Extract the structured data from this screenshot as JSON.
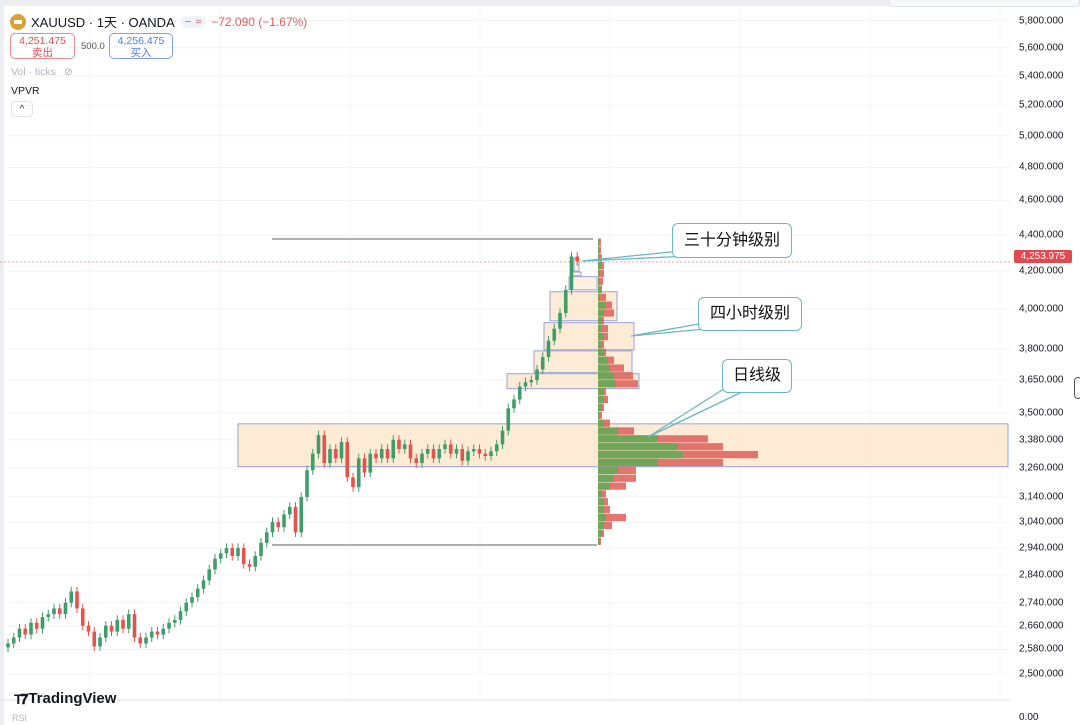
{
  "header": {
    "symbol": "XAUUSD · 1天 · OANDA",
    "change": "−72.090 (−1.67%)",
    "pill_left": "−",
    "pill_right": "≈",
    "sell_price": "4,251.475",
    "sell_label": "卖出",
    "spread": "500.0",
    "buy_price": "4,256.475",
    "buy_label": "买入",
    "vol_indicator": "Vol · ticks",
    "vpvr_indicator": "VPVR",
    "collapse_icon": "chevron-up-icon",
    "collapse_glyph": "^"
  },
  "colors": {
    "up": "#3f9d6a",
    "down": "#e5534b",
    "profile_up": "#6aa857",
    "profile_down": "#e0675f",
    "zone_fill": "#fde8cf",
    "zone_border": "#98a3d6",
    "callout_border": "#6bb7c2",
    "current_price": "#e2484e"
  },
  "price_axis": {
    "ticks": [
      "5,800.000",
      "5,600.000",
      "5,400.000",
      "5,200.000",
      "5,000.000",
      "4,800.000",
      "4,600.000",
      "4,400.000",
      "4,200.000",
      "4,000.000",
      "3,800.000",
      "3,650.000",
      "3,500.000",
      "3,380.000",
      "3,260.000",
      "3,140.000",
      "3,040.000",
      "2,940.000",
      "2,840.000",
      "2,740.000",
      "2,660.000",
      "2,580.000",
      "2,500.000"
    ],
    "current_price": "4,253.975",
    "rsi_zero": "0.00",
    "scale": "log"
  },
  "chart_data": {
    "type": "candlestick",
    "symbol": "XAUUSD",
    "interval": "1D",
    "closes": [
      2600,
      2620,
      2650,
      2630,
      2670,
      2650,
      2690,
      2700,
      2720,
      2700,
      2740,
      2780,
      2720,
      2660,
      2640,
      2590,
      2620,
      2660,
      2640,
      2680,
      2650,
      2700,
      2620,
      2600,
      2620,
      2640,
      2630,
      2650,
      2670,
      2680,
      2710,
      2740,
      2760,
      2790,
      2820,
      2860,
      2900,
      2920,
      2940,
      2910,
      2940,
      2880,
      2870,
      2910,
      2960,
      3000,
      3040,
      3020,
      3070,
      3100,
      3000,
      3140,
      3250,
      3320,
      3400,
      3280,
      3340,
      3300,
      3370,
      3220,
      3180,
      3300,
      3240,
      3320,
      3300,
      3340,
      3300,
      3380,
      3340,
      3360,
      3300,
      3280,
      3320,
      3340,
      3300,
      3340,
      3360,
      3320,
      3340,
      3290,
      3330,
      3340,
      3320,
      3310,
      3330,
      3360,
      3420,
      3520,
      3560,
      3620,
      3640,
      3650,
      3700,
      3760,
      3840,
      3900,
      3980,
      4100,
      4280,
      4253.975
    ],
    "range_high": 4380,
    "range_low": 2950,
    "volume_profile": {
      "price_top": 4380,
      "price_bottom": 2950,
      "rows": [
        [
          1,
          3
        ],
        [
          1,
          3
        ],
        [
          2,
          4
        ],
        [
          4,
          6
        ],
        [
          2,
          6
        ],
        [
          2,
          5
        ],
        [
          3,
          4
        ],
        [
          2,
          8
        ],
        [
          8,
          14
        ],
        [
          6,
          16
        ],
        [
          4,
          6
        ],
        [
          4,
          10
        ],
        [
          6,
          10
        ],
        [
          3,
          6
        ],
        [
          6,
          8
        ],
        [
          10,
          16
        ],
        [
          12,
          26
        ],
        [
          16,
          35
        ],
        [
          18,
          40
        ],
        [
          6,
          8
        ],
        [
          6,
          10
        ],
        [
          4,
          6
        ],
        [
          2,
          4
        ],
        [
          6,
          12
        ],
        [
          20,
          36
        ],
        [
          60,
          110
        ],
        [
          80,
          125
        ],
        [
          85,
          160
        ],
        [
          60,
          125
        ],
        [
          20,
          38
        ],
        [
          16,
          38
        ],
        [
          12,
          28
        ],
        [
          4,
          8
        ],
        [
          6,
          10
        ],
        [
          6,
          12
        ],
        [
          8,
          28
        ],
        [
          6,
          14
        ],
        [
          4,
          6
        ],
        [
          2,
          3
        ]
      ]
    },
    "zones": [
      {
        "level": "日线级",
        "high": 3450,
        "low": 3265
      },
      {
        "level": "四小时级别",
        "high": 3680,
        "low": 3610
      },
      {
        "level": "四小时级别",
        "high": 3790,
        "low": 3685
      },
      {
        "level": "四小时级别",
        "high": 3930,
        "low": 3795
      },
      {
        "level": "四小时级别",
        "high": 4090,
        "low": 3940
      },
      {
        "level": "三十分钟级别",
        "high": 4170,
        "low": 4100
      },
      {
        "level": "三十分钟级别",
        "high": 4195,
        "low": 4175
      },
      {
        "level": "三十分钟级别",
        "high": 4270,
        "low": 4200
      }
    ],
    "annotations": [
      "三十分钟级别",
      "四小时级别",
      "日线级"
    ]
  },
  "branding": {
    "logo": "TradingView",
    "rsi_label": "RSI"
  }
}
